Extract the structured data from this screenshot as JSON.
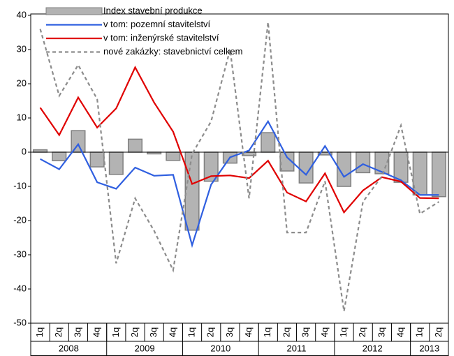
{
  "chart_data": {
    "type": "bar_line",
    "categories": [
      "1q",
      "2q",
      "3q",
      "4q",
      "1q",
      "2q",
      "3q",
      "4q",
      "1q",
      "2q",
      "3q",
      "4q",
      "1q",
      "2q",
      "3q",
      "4q",
      "1q",
      "2q",
      "3q",
      "4q",
      "1q",
      "2q"
    ],
    "groups": [
      "2008",
      "2009",
      "2010",
      "2011",
      "2012",
      "2013"
    ],
    "series": [
      {
        "name": "Index stavební produkce",
        "type": "bar",
        "color": "#b3b3b3",
        "values": [
          0.7,
          -2.5,
          6.3,
          -4.3,
          -6.5,
          3.8,
          -0.5,
          -2.4,
          -22.8,
          -8.5,
          -3.2,
          -1.0,
          5.7,
          -5.5,
          -9.0,
          -0.8,
          -10.0,
          -6.0,
          -6.3,
          -8.8,
          -12.5,
          -13.0
        ]
      },
      {
        "name": "v tom: pozemní stavitelství",
        "type": "line",
        "color": "#2f5fe0",
        "values": [
          -2,
          -5,
          2.3,
          -8.8,
          -10.7,
          -4.5,
          -6.9,
          -6.6,
          -27.2,
          -9.5,
          -1.5,
          0.5,
          9,
          -1.5,
          -6.6,
          1.8,
          -7.2,
          -3.5,
          -5.8,
          -8.2,
          -12.5,
          -12.5
        ]
      },
      {
        "name": "v tom: inženýrské stavitelství",
        "type": "line",
        "color": "#e00000",
        "values": [
          13,
          5,
          16,
          7.2,
          12.8,
          24.8,
          14.5,
          6,
          -9.3,
          -7,
          -6.8,
          -7.6,
          -2.5,
          -11.8,
          -14.4,
          -6.2,
          -17.6,
          -11.2,
          -7.3,
          -8.6,
          -13.4,
          -13.5
        ]
      },
      {
        "name": "nové zakázky: stavebnictví celkem",
        "type": "dashed",
        "color": "#8c8c8c",
        "values": [
          36,
          16.5,
          25.5,
          15.5,
          -32.5,
          -13.5,
          -23,
          -34.5,
          -0.5,
          9,
          30,
          -13.5,
          38,
          -23.5,
          -23.5,
          -8.5,
          -46.5,
          -14.5,
          -7,
          7.8,
          -18,
          -14.5
        ]
      }
    ],
    "ylim": [
      -50,
      40
    ],
    "yticks": [
      -50,
      -40,
      -30,
      -20,
      -10,
      0,
      10,
      20,
      30,
      40
    ],
    "grid": false,
    "legend": "top-left"
  }
}
